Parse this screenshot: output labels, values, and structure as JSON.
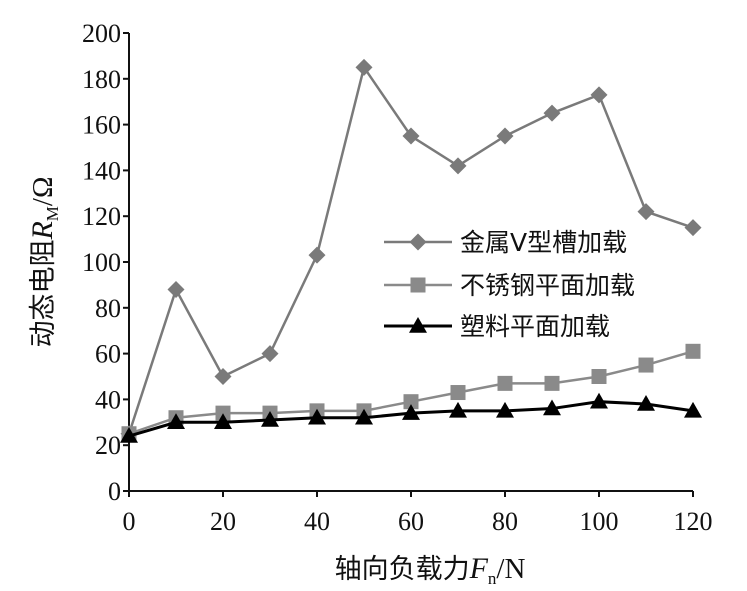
{
  "chart_data": {
    "type": "line",
    "x": [
      0,
      10,
      20,
      30,
      40,
      50,
      60,
      70,
      80,
      90,
      100,
      110,
      120
    ],
    "xlim": [
      0,
      120
    ],
    "ylim": [
      0,
      200
    ],
    "xticks": [
      "0",
      "20",
      "40",
      "60",
      "80",
      "100",
      "120"
    ],
    "yticks": [
      "0",
      "20",
      "40",
      "60",
      "80",
      "100",
      "120",
      "140",
      "160",
      "180",
      "200"
    ],
    "xlabel": {
      "prefix": "轴向负载力",
      "symbol": "F",
      "sub": "n",
      "suffix": "/N"
    },
    "ylabel": {
      "prefix": "动态电阻",
      "symbol": "R",
      "sub": "M",
      "suffix": "/Ω"
    },
    "grid": false,
    "legend_position": "right",
    "series": [
      {
        "name": "金属V型槽加载",
        "marker": "diamond",
        "color": "#7a7a7a",
        "values": [
          25,
          88,
          50,
          60,
          103,
          185,
          155,
          142,
          155,
          165,
          173,
          122,
          115
        ]
      },
      {
        "name": "不锈钢平面加载",
        "marker": "square",
        "color": "#8a8a8a",
        "values": [
          25,
          32,
          34,
          34,
          35,
          35,
          39,
          43,
          47,
          47,
          50,
          55,
          61
        ]
      },
      {
        "name": "塑料平面加载",
        "marker": "triangle",
        "color": "#000000",
        "values": [
          24,
          30,
          30,
          31,
          32,
          32,
          34,
          35,
          35,
          36,
          39,
          38,
          35
        ]
      }
    ]
  }
}
